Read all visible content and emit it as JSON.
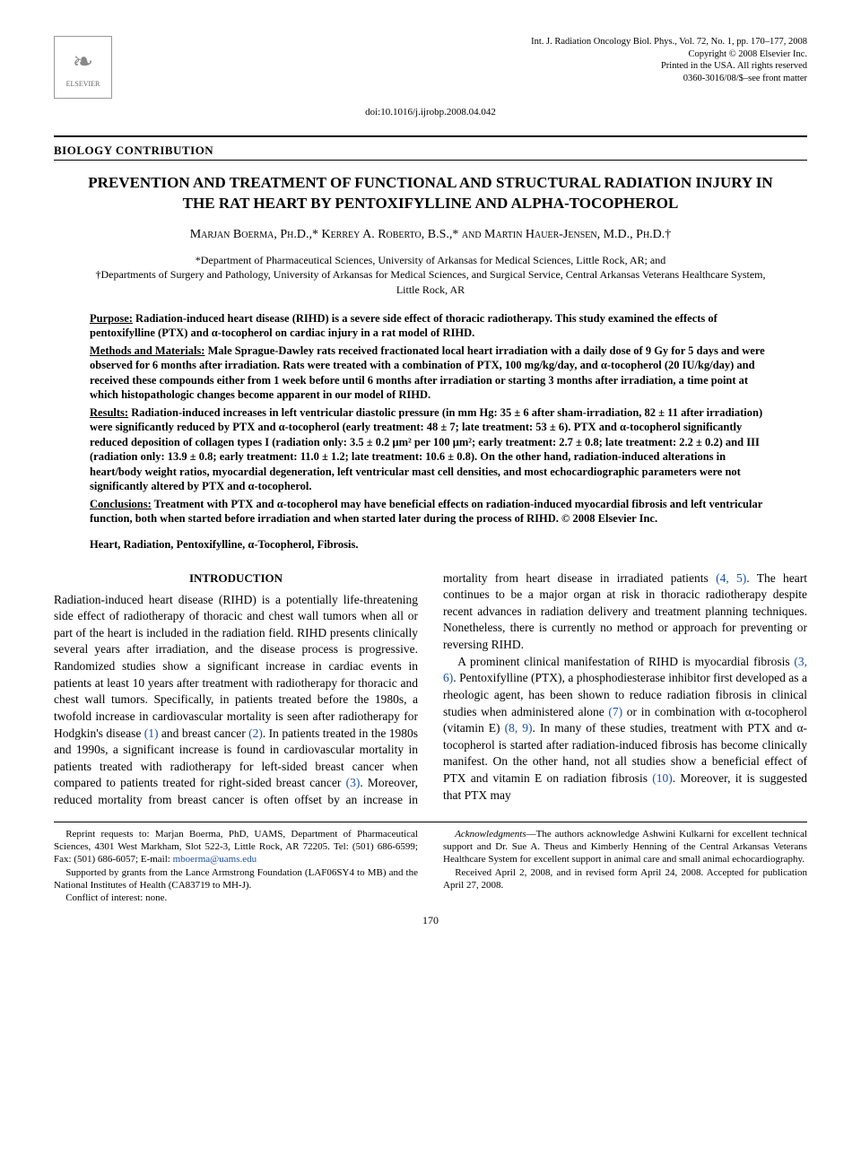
{
  "header": {
    "publisher_logo_label": "ELSEVIER",
    "journal_cite": "Int. J. Radiation Oncology Biol. Phys., Vol. 72, No. 1, pp. 170–177, 2008",
    "copyright": "Copyright © 2008 Elsevier Inc.",
    "printed": "Printed in the USA. All rights reserved",
    "issn": "0360-3016/08/$–see front matter",
    "doi": "doi:10.1016/j.ijrobp.2008.04.042"
  },
  "section_label": "BIOLOGY CONTRIBUTION",
  "title": "PREVENTION AND TREATMENT OF FUNCTIONAL AND STRUCTURAL RADIATION INJURY IN THE RAT HEART BY PENTOXIFYLLINE AND ALPHA-TOCOPHEROL",
  "authors_line": "Marjan Boerma, Ph.D.,* Kerrey A. Roberto, B.S.,* and Martin Hauer-Jensen, M.D., Ph.D.†",
  "affiliations": {
    "line1": "*Department of Pharmaceutical Sciences, University of Arkansas for Medical Sciences, Little Rock, AR; and",
    "line2": "†Departments of Surgery and Pathology, University of Arkansas for Medical Sciences, and Surgical Service, Central Arkansas Veterans Healthcare System, Little Rock, AR"
  },
  "abstract": {
    "purpose_head": "Purpose:",
    "purpose": " Radiation-induced heart disease (RIHD) is a severe side effect of thoracic radiotherapy. This study examined the effects of pentoxifylline (PTX) and α-tocopherol on cardiac injury in a rat model of RIHD.",
    "methods_head": "Methods and Materials:",
    "methods": " Male Sprague-Dawley rats received fractionated local heart irradiation with a daily dose of 9 Gy for 5 days and were observed for 6 months after irradiation. Rats were treated with a combination of PTX, 100 mg/kg/day, and α-tocopherol (20 IU/kg/day) and received these compounds either from 1 week before until 6 months after irradiation or starting 3 months after irradiation, a time point at which histopathologic changes become apparent in our model of RIHD.",
    "results_head": "Results:",
    "results": " Radiation-induced increases in left ventricular diastolic pressure (in mm Hg: 35 ± 6 after sham-irradiation, 82 ± 11 after irradiation) were significantly reduced by PTX and α-tocopherol (early treatment: 48 ± 7; late treatment: 53 ± 6). PTX and α-tocopherol significantly reduced deposition of collagen types I (radiation only: 3.5 ± 0.2 μm² per 100 μm²; early treatment: 2.7 ± 0.8; late treatment: 2.2 ± 0.2) and III (radiation only: 13.9 ± 0.8; early treatment: 11.0 ± 1.2; late treatment: 10.6 ± 0.8). On the other hand, radiation-induced alterations in heart/body weight ratios, myocardial degeneration, left ventricular mast cell densities, and most echocardiographic parameters were not significantly altered by PTX and α-tocopherol.",
    "conclusions_head": "Conclusions:",
    "conclusions": " Treatment with PTX and α-tocopherol may have beneficial effects on radiation-induced myocardial fibrosis and left ventricular function, both when started before irradiation and when started later during the process of RIHD.   © 2008 Elsevier Inc."
  },
  "keywords": "Heart, Radiation, Pentoxifylline, α-Tocopherol, Fibrosis.",
  "intro_heading": "INTRODUCTION",
  "body": {
    "p1a": "Radiation-induced heart disease (RIHD) is a potentially life-threatening side effect of radiotherapy of thoracic and chest wall tumors when all or part of the heart is included in the radiation field. RIHD presents clinically several years after irradiation, and the disease process is progressive. Randomized studies show a significant increase in cardiac events in patients at least 10 years after treatment with radiotherapy for thoracic and chest wall tumors. Specifically, in patients treated before the 1980s, a twofold increase in cardiovascular mortality is seen after radiotherapy for Hodgkin's disease ",
    "ref1": "(1)",
    "p1b": " and breast cancer ",
    "ref2": "(2)",
    "p1c": ". In patients treated in the 1980s and 1990s, a significant increase is found in cardiovascular mortality in patients treated with radiotherapy for left-sided breast cancer when compared to patients treated for right-sided breast cancer ",
    "ref3": "(3)",
    "p1d": ". Moreover, reduced mortality from ",
    "p1e": "breast cancer is often offset by an increase in mortality from heart disease in irradiated patients ",
    "ref45": "(4, 5)",
    "p1f": ". The heart continues to be a major organ at risk in thoracic radiotherapy despite recent advances in radiation delivery and treatment planning techniques. Nonetheless, there is currently no method or approach for preventing or reversing RIHD.",
    "p2a": "A prominent clinical manifestation of RIHD is myocardial fibrosis ",
    "ref36": "(3, 6)",
    "p2b": ". Pentoxifylline (PTX), a phosphodiesterase inhibitor first developed as a rheologic agent, has been shown to reduce radiation fibrosis in clinical studies when administered alone ",
    "ref7": "(7)",
    "p2c": " or in combination with α-tocopherol (vitamin E) ",
    "ref89": "(8, 9)",
    "p2d": ". In many of these studies, treatment with PTX and α-tocopherol is started after radiation-induced fibrosis has become clinically manifest. On the other hand, not all studies show a beneficial effect of PTX and vitamin E on radiation fibrosis ",
    "ref10": "(10)",
    "p2e": ". Moreover, it is suggested that PTX may"
  },
  "footnotes": {
    "reprint": "Reprint requests to: Marjan Boerma, PhD, UAMS, Department of Pharmaceutical Sciences, 4301 West Markham, Slot 522-3, Little Rock, AR 72205. Tel: (501) 686-6599; Fax: (501) 686-6057; E-mail: ",
    "email": "mboerma@uams.edu",
    "support": "Supported by grants from the Lance Armstrong Foundation (LAF06SY4 to MB) and the National Institutes of Health (CA83719 to MH-J).",
    "conflict": "Conflict of interest: none.",
    "ack_label": "Acknowledgments",
    "ack": "—The authors acknowledge Ashwini Kulkarni for excellent technical support and Dr. Sue A. Theus and Kimberly Henning of the Central Arkansas Veterans Healthcare System for excellent support in animal care and small animal echocardiography.",
    "received": "Received April 2, 2008, and in revised form April 24, 2008. Accepted for publication April 27, 2008."
  },
  "page_number": "170",
  "colors": {
    "link": "#1a4fa3",
    "text": "#000000",
    "background": "#ffffff"
  }
}
